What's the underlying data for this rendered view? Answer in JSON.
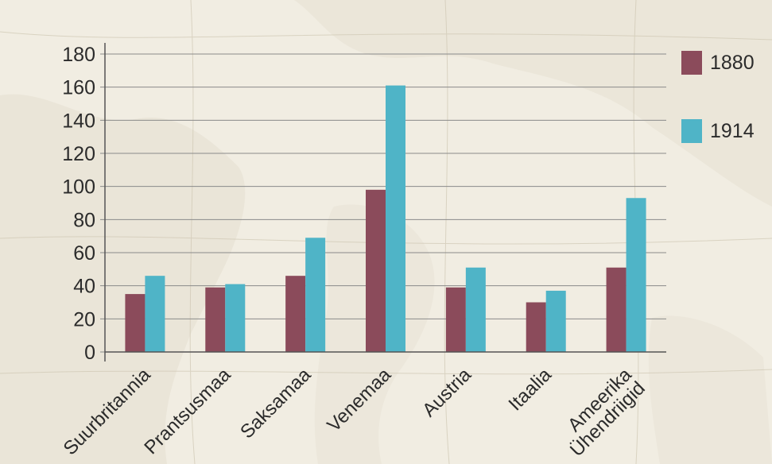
{
  "chart_data": {
    "type": "bar",
    "categories": [
      "Suurbritannia",
      "Prantsusmaa",
      "Saksamaa",
      "Venemaa",
      "Austria",
      "Itaalia",
      "Ameerika Ühendriigid"
    ],
    "category_lines": [
      [
        "Suurbritannia"
      ],
      [
        "Prantsusmaa"
      ],
      [
        "Saksamaa"
      ],
      [
        "Venemaa"
      ],
      [
        "Austria"
      ],
      [
        "Itaalia"
      ],
      [
        "Ameerika",
        "Ühendriigid"
      ]
    ],
    "series": [
      {
        "name": "1880",
        "values": [
          35,
          39,
          46,
          98,
          39,
          30,
          51
        ],
        "color": "#8b4b5b"
      },
      {
        "name": "1914",
        "values": [
          46,
          41,
          69,
          161,
          51,
          37,
          93
        ],
        "color": "#4fb4c7"
      }
    ],
    "ylim": [
      0,
      180
    ],
    "yticks": [
      0,
      20,
      40,
      60,
      80,
      100,
      120,
      140,
      160,
      180
    ],
    "grid": true,
    "legend": "right",
    "background": "old world map"
  }
}
